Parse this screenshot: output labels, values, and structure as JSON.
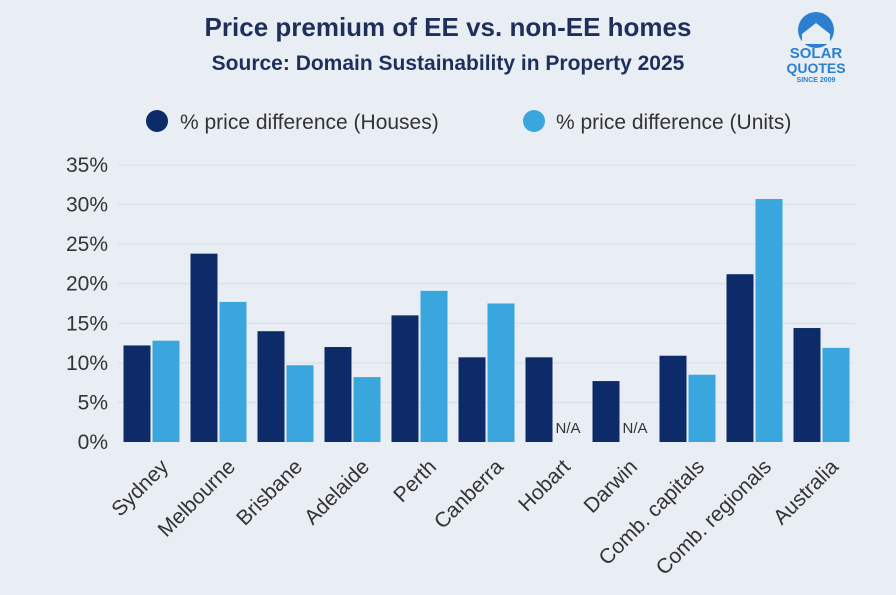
{
  "chart_data": {
    "type": "bar",
    "title": "Price premium of EE vs. non-EE homes",
    "subtitle": "Source: Domain Sustainability in Property 2025",
    "categories": [
      "Sydney",
      "Melbourne",
      "Brisbane",
      "Adelaide",
      "Perth",
      "Canberra",
      "Hobart",
      "Darwin",
      "Comb. capitals",
      "Comb. regionals",
      "Australia"
    ],
    "series": [
      {
        "name": "% price difference (Houses)",
        "color": "#0d2b68",
        "values": [
          12.2,
          23.8,
          14.0,
          12.0,
          16.0,
          10.7,
          10.7,
          7.7,
          10.9,
          21.2,
          14.4
        ]
      },
      {
        "name": "% price difference (Units)",
        "color": "#39a6dd",
        "values": [
          12.8,
          17.7,
          9.7,
          8.2,
          19.1,
          17.5,
          null,
          null,
          8.5,
          30.7,
          11.9
        ]
      }
    ],
    "missing_label": "N/A",
    "ylim": [
      0,
      35
    ],
    "yticks": [
      0,
      5,
      10,
      15,
      20,
      25,
      30,
      35
    ],
    "ytick_suffix": "%",
    "grid": true,
    "legend_position": "top"
  },
  "logo": {
    "line1": "SOLAR",
    "line2": "QUOTES",
    "line3": "SINCE 2009",
    "color": "#2c7fd0"
  }
}
